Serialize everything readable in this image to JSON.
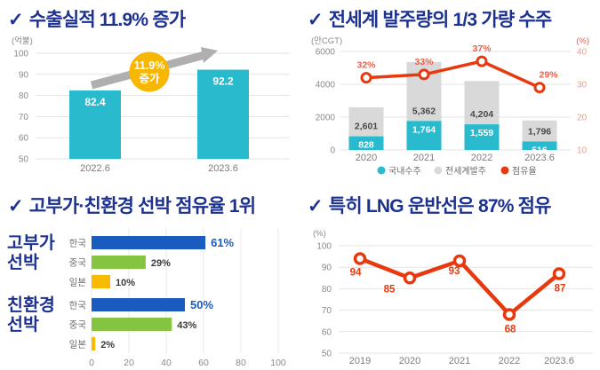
{
  "colors": {
    "title_navy": "#1c3190",
    "cyan": "#2ABACD",
    "gray_bar": "#D9D9D9",
    "red_line": "#E8380D",
    "salmon_axis": "#F2998A",
    "pct_label": "#E8604A",
    "korea_blue": "#1A5BBF",
    "china_green": "#85C440",
    "japan_yellow": "#F9BB00",
    "badge_yellow": "#F7B600",
    "arrow_gray": "#AFAFAF"
  },
  "chart_data": [
    {
      "id": "export",
      "type": "bar",
      "check": "✓",
      "title": "수출실적 11.9% 증가",
      "unit_label": "(억불)",
      "categories": [
        "2022.6",
        "2023.6"
      ],
      "values": [
        82.4,
        92.2
      ],
      "value_labels": [
        "82.4",
        "92.2"
      ],
      "ylim": [
        50,
        100
      ],
      "yticks": [
        100,
        90,
        80,
        70,
        60,
        50
      ],
      "bar_color": "#2ABACD",
      "annotation": {
        "line1": "11.9%",
        "line2": "증가",
        "circle_color": "#F7B600",
        "arrow_color": "#AFAFAF"
      }
    },
    {
      "id": "orders",
      "type": "bar+line",
      "check": "✓",
      "title": "전세계 발주량의 1/3 가량 수주",
      "unit_label_left": "(만CGT)",
      "unit_label_right": "(%)",
      "categories": [
        "2020",
        "2021",
        "2022",
        "2023.6"
      ],
      "series": [
        {
          "name": "전세계발주",
          "type": "bar",
          "color": "#D9D9D9",
          "values": [
            2601,
            5362,
            4204,
            1796
          ],
          "value_labels": [
            "2,601",
            "5,362",
            "4,204",
            "1,796"
          ]
        },
        {
          "name": "국내수주",
          "type": "bar",
          "color": "#2ABACD",
          "values": [
            828,
            1764,
            1559,
            516
          ],
          "value_labels": [
            "828",
            "1,764",
            "1,559",
            "516"
          ]
        },
        {
          "name": "점유율",
          "type": "line",
          "color": "#E8380D",
          "axis": "right",
          "values": [
            32,
            33,
            37,
            29
          ],
          "value_labels": [
            "32%",
            "33%",
            "37%",
            "29%"
          ]
        }
      ],
      "ylim_left": [
        0,
        6000
      ],
      "yticks_left": [
        6000,
        4000,
        2000,
        0
      ],
      "ylim_right": [
        10,
        40
      ],
      "yticks_right": [
        40,
        30,
        20,
        10
      ],
      "legend": [
        {
          "label": "국내수주",
          "color": "#2ABACD"
        },
        {
          "label": "전세계발주",
          "color": "#D9D9D9"
        },
        {
          "label": "점유율",
          "color": "#E8380D"
        }
      ]
    },
    {
      "id": "market-share",
      "type": "hbar",
      "check": "✓",
      "title": "고부가·친환경 선박 점유율 1위",
      "xlim": [
        0,
        100
      ],
      "xticks": [
        0,
        20,
        40,
        60,
        80,
        100
      ],
      "groups": [
        {
          "label_line1": "고부가",
          "label_line2": "선박",
          "rows": [
            {
              "country": "한국",
              "value": 61,
              "value_label": "61%",
              "color": "#1A5BBF",
              "emphasis": true
            },
            {
              "country": "중국",
              "value": 29,
              "value_label": "29%",
              "color": "#85C440",
              "emphasis": false
            },
            {
              "country": "일본",
              "value": 10,
              "value_label": "10%",
              "color": "#F9BB00",
              "emphasis": false
            }
          ]
        },
        {
          "label_line1": "친환경",
          "label_line2": "선박",
          "rows": [
            {
              "country": "한국",
              "value": 50,
              "value_label": "50%",
              "color": "#1A5BBF",
              "emphasis": true
            },
            {
              "country": "중국",
              "value": 43,
              "value_label": "43%",
              "color": "#85C440",
              "emphasis": false
            },
            {
              "country": "일본",
              "value": 2,
              "value_label": "2%",
              "color": "#F9BB00",
              "emphasis": false
            }
          ]
        }
      ]
    },
    {
      "id": "lng",
      "type": "line",
      "check": "✓",
      "title": "특히 LNG 운반선은 87% 점유",
      "unit_label": "(%)",
      "categories": [
        "2019",
        "2020",
        "2021",
        "2022",
        "2023.6"
      ],
      "values": [
        94,
        85,
        93,
        68,
        87
      ],
      "value_labels": [
        "94",
        "85",
        "93",
        "68",
        "87"
      ],
      "ylim": [
        50,
        100
      ],
      "yticks": [
        100,
        90,
        80,
        70,
        60,
        50
      ],
      "line_color": "#E8380D"
    }
  ]
}
